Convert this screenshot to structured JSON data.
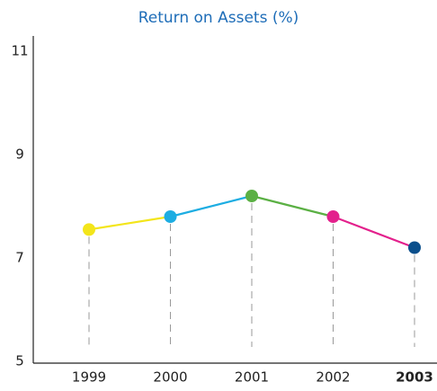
{
  "chart_data": {
    "type": "line",
    "title": "Return on Assets (%)",
    "categories": [
      "1999",
      "2000",
      "2001",
      "2002",
      "2003"
    ],
    "values": [
      7.55,
      7.8,
      8.2,
      7.8,
      7.2
    ],
    "colors": [
      "#f3e51a",
      "#1dade2",
      "#5bb044",
      "#e3208c",
      "#0b4f8c"
    ],
    "ylim": [
      5,
      11
    ],
    "yticks": [
      5,
      7,
      9,
      11
    ],
    "grid": false,
    "drop_lines": true,
    "bold_category": 4
  }
}
